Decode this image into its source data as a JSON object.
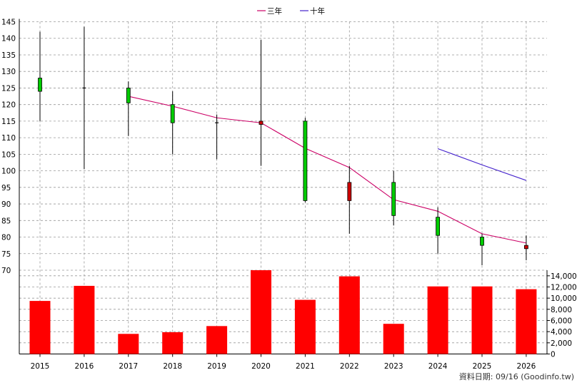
{
  "chart_data": {
    "type": "candlestick",
    "legend": [
      {
        "label": "三年",
        "color": "#cc0066"
      },
      {
        "label": "十年",
        "color": "#4422cc"
      }
    ],
    "x": [
      "2015",
      "2016",
      "2017",
      "2018",
      "2019",
      "2020",
      "2021",
      "2022",
      "2023",
      "2024",
      "2025",
      "2026"
    ],
    "price_axis": {
      "ylim": [
        70,
        145
      ],
      "ticks": [
        70,
        75,
        80,
        85,
        90,
        95,
        100,
        105,
        110,
        115,
        120,
        125,
        130,
        135,
        140,
        145
      ]
    },
    "volume_axis": {
      "ylim": [
        0,
        15000
      ],
      "ticks": [
        "0",
        "2,000",
        "4,000",
        "6,000",
        "8,000",
        "10,000",
        "12,000",
        "14,000"
      ],
      "tick_values": [
        0,
        2000,
        4000,
        6000,
        8000,
        10000,
        12000,
        14000
      ]
    },
    "candles": [
      {
        "year": "2015",
        "open": 124,
        "high": 142,
        "low": 115,
        "close": 128
      },
      {
        "year": "2016",
        "open": 125,
        "high": 143.5,
        "low": 100.5,
        "close": 125
      },
      {
        "year": "2017",
        "open": 120.5,
        "high": 127,
        "low": 110.5,
        "close": 125
      },
      {
        "year": "2018",
        "open": 114.5,
        "high": 124,
        "low": 105,
        "close": 120
      },
      {
        "year": "2019",
        "open": 114.5,
        "high": 117,
        "low": 103.5,
        "close": 114.5
      },
      {
        "year": "2020",
        "open": 115,
        "high": 139.5,
        "low": 101.5,
        "close": 114
      },
      {
        "year": "2021",
        "open": 91,
        "high": 116,
        "low": 90.5,
        "close": 115
      },
      {
        "year": "2022",
        "open": 96.5,
        "high": 101.5,
        "low": 81,
        "close": 91
      },
      {
        "year": "2023",
        "open": 86.5,
        "high": 100,
        "low": 83.5,
        "close": 96.5
      },
      {
        "year": "2024",
        "open": 80.5,
        "high": 89,
        "low": 75,
        "close": 86
      },
      {
        "year": "2025",
        "open": 77.5,
        "high": 81,
        "low": 71.5,
        "close": 80
      },
      {
        "year": "2026",
        "open": 77.5,
        "high": 80.5,
        "low": 73,
        "close": 76.5
      }
    ],
    "series": [
      {
        "name": "三年",
        "color": "#cc0066",
        "x": [
          "2017",
          "2018",
          "2019",
          "2020",
          "2021",
          "2022",
          "2023",
          "2024",
          "2025",
          "2026"
        ],
        "values": [
          122.5,
          119.5,
          116,
          114.5,
          106.8,
          101,
          91.3,
          87.8,
          81,
          78.2
        ]
      },
      {
        "name": "十年",
        "color": "#4422cc",
        "x": [
          "2024",
          "2025",
          "2026"
        ],
        "values": [
          106.7,
          101.8,
          97.1
        ]
      }
    ],
    "volume": [
      9500,
      12200,
      3600,
      3900,
      5000,
      15000,
      9700,
      13900,
      5400,
      12100,
      12100,
      11600
    ],
    "colors": {
      "up": "#00cc00",
      "down": "#cc0000",
      "volume": "#ff0000",
      "grid": "#999999"
    },
    "grid": true,
    "footer": "資料日期: 09/16 (Goodinfo.tw)"
  }
}
